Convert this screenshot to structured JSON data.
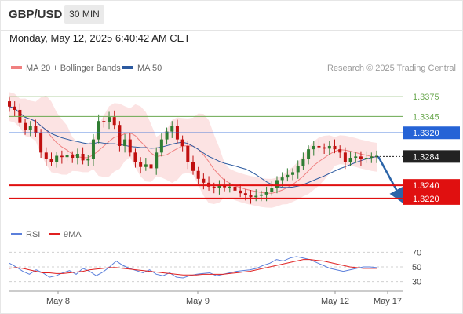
{
  "header": {
    "pair": "GBP/USD",
    "timeframe": "30 MIN"
  },
  "timestamp": "Monday, May 12, 2025 6:40:42 AM CET",
  "credit": "Research © 2025 Trading Central",
  "legend": {
    "bollinger": "MA 20 + Bollinger Bands",
    "ma50": "MA 50",
    "rsi": "RSI",
    "rsi_ma": "9MA"
  },
  "colors": {
    "bollinger": "#f08080",
    "ma50": "#2c5aa0",
    "rsi": "#5b7fdb",
    "rsi_ma": "#e02020",
    "resistance_strong": "#2563d6",
    "support": "#e01010",
    "pivot_label_bg": "#222222",
    "green_level": "#6aa84f",
    "up_candle": "#2f7d32",
    "down_candle": "#c01010",
    "forecast_arrow": "#2b64a8"
  },
  "chart_data": [
    {
      "type": "candlestick",
      "title": "GBP/USD",
      "timeframe": "30 MIN",
      "x_labels": [
        "May 8",
        "May 9",
        "May 12",
        "May 17"
      ],
      "ylim": [
        1.3184,
        1.3398
      ],
      "levels": [
        {
          "value": 1.3375,
          "label": "1.3375",
          "style": "green"
        },
        {
          "value": 1.3345,
          "label": "1.3345",
          "style": "green"
        },
        {
          "value": 1.332,
          "label": "1.3320",
          "style": "resistance"
        },
        {
          "value": 1.3284,
          "label": "1.3284",
          "style": "pivot"
        },
        {
          "value": 1.324,
          "label": "1.3240",
          "style": "support"
        },
        {
          "value": 1.322,
          "label": "1.3220",
          "style": "support"
        }
      ],
      "candle_closes": [
        1.336,
        1.3355,
        1.3335,
        1.3325,
        1.333,
        1.332,
        1.329,
        1.328,
        1.3275,
        1.3285,
        1.3283,
        1.3286,
        1.3282,
        1.3288,
        1.3278,
        1.328,
        1.331,
        1.3338,
        1.3336,
        1.3344,
        1.3332,
        1.33,
        1.331,
        1.329,
        1.3275,
        1.3268,
        1.3272,
        1.3266,
        1.329,
        1.331,
        1.3322,
        1.333,
        1.331,
        1.33,
        1.3275,
        1.3262,
        1.325,
        1.3244,
        1.3238,
        1.3236,
        1.324,
        1.3237,
        1.3238,
        1.3232,
        1.3228,
        1.3225,
        1.3222,
        1.3224,
        1.3226,
        1.323,
        1.3236,
        1.3248,
        1.3252,
        1.3256,
        1.326,
        1.327,
        1.328,
        1.3295,
        1.33,
        1.3298,
        1.3296,
        1.33,
        1.3295,
        1.329,
        1.3275,
        1.3282,
        1.3284,
        1.328,
        1.3282,
        1.3284,
        1.3285
      ],
      "forecast": {
        "from": 1.3284,
        "to": 1.322
      }
    },
    {
      "type": "line",
      "title": "RSI",
      "ylim": [
        20,
        80
      ],
      "y_ticks": [
        70,
        50,
        30
      ],
      "series": [
        {
          "name": "RSI",
          "values": [
            55,
            50,
            44,
            40,
            46,
            42,
            36,
            38,
            42,
            45,
            40,
            48,
            44,
            38,
            43,
            50,
            58,
            52,
            48,
            45,
            42,
            46,
            40,
            38,
            42,
            36,
            35,
            38,
            40,
            41,
            42,
            38,
            40,
            42,
            44,
            45,
            46,
            48,
            52,
            55,
            60,
            58,
            62,
            64,
            62,
            60,
            56,
            52,
            48,
            46,
            44,
            46,
            48,
            50,
            50,
            49
          ]
        },
        {
          "name": "9MA",
          "values": [
            48,
            49,
            48,
            46,
            44,
            42,
            42,
            41,
            41,
            42,
            43,
            44,
            46,
            47,
            48,
            49,
            49,
            48,
            47,
            46,
            45,
            44,
            43,
            42,
            41,
            40,
            39,
            39,
            39,
            40,
            40,
            40,
            40,
            41,
            42,
            43,
            44,
            46,
            48,
            50,
            52,
            54,
            56,
            58,
            60,
            60,
            59,
            58,
            56,
            54,
            52,
            50,
            49,
            48,
            48,
            48
          ]
        }
      ]
    }
  ]
}
